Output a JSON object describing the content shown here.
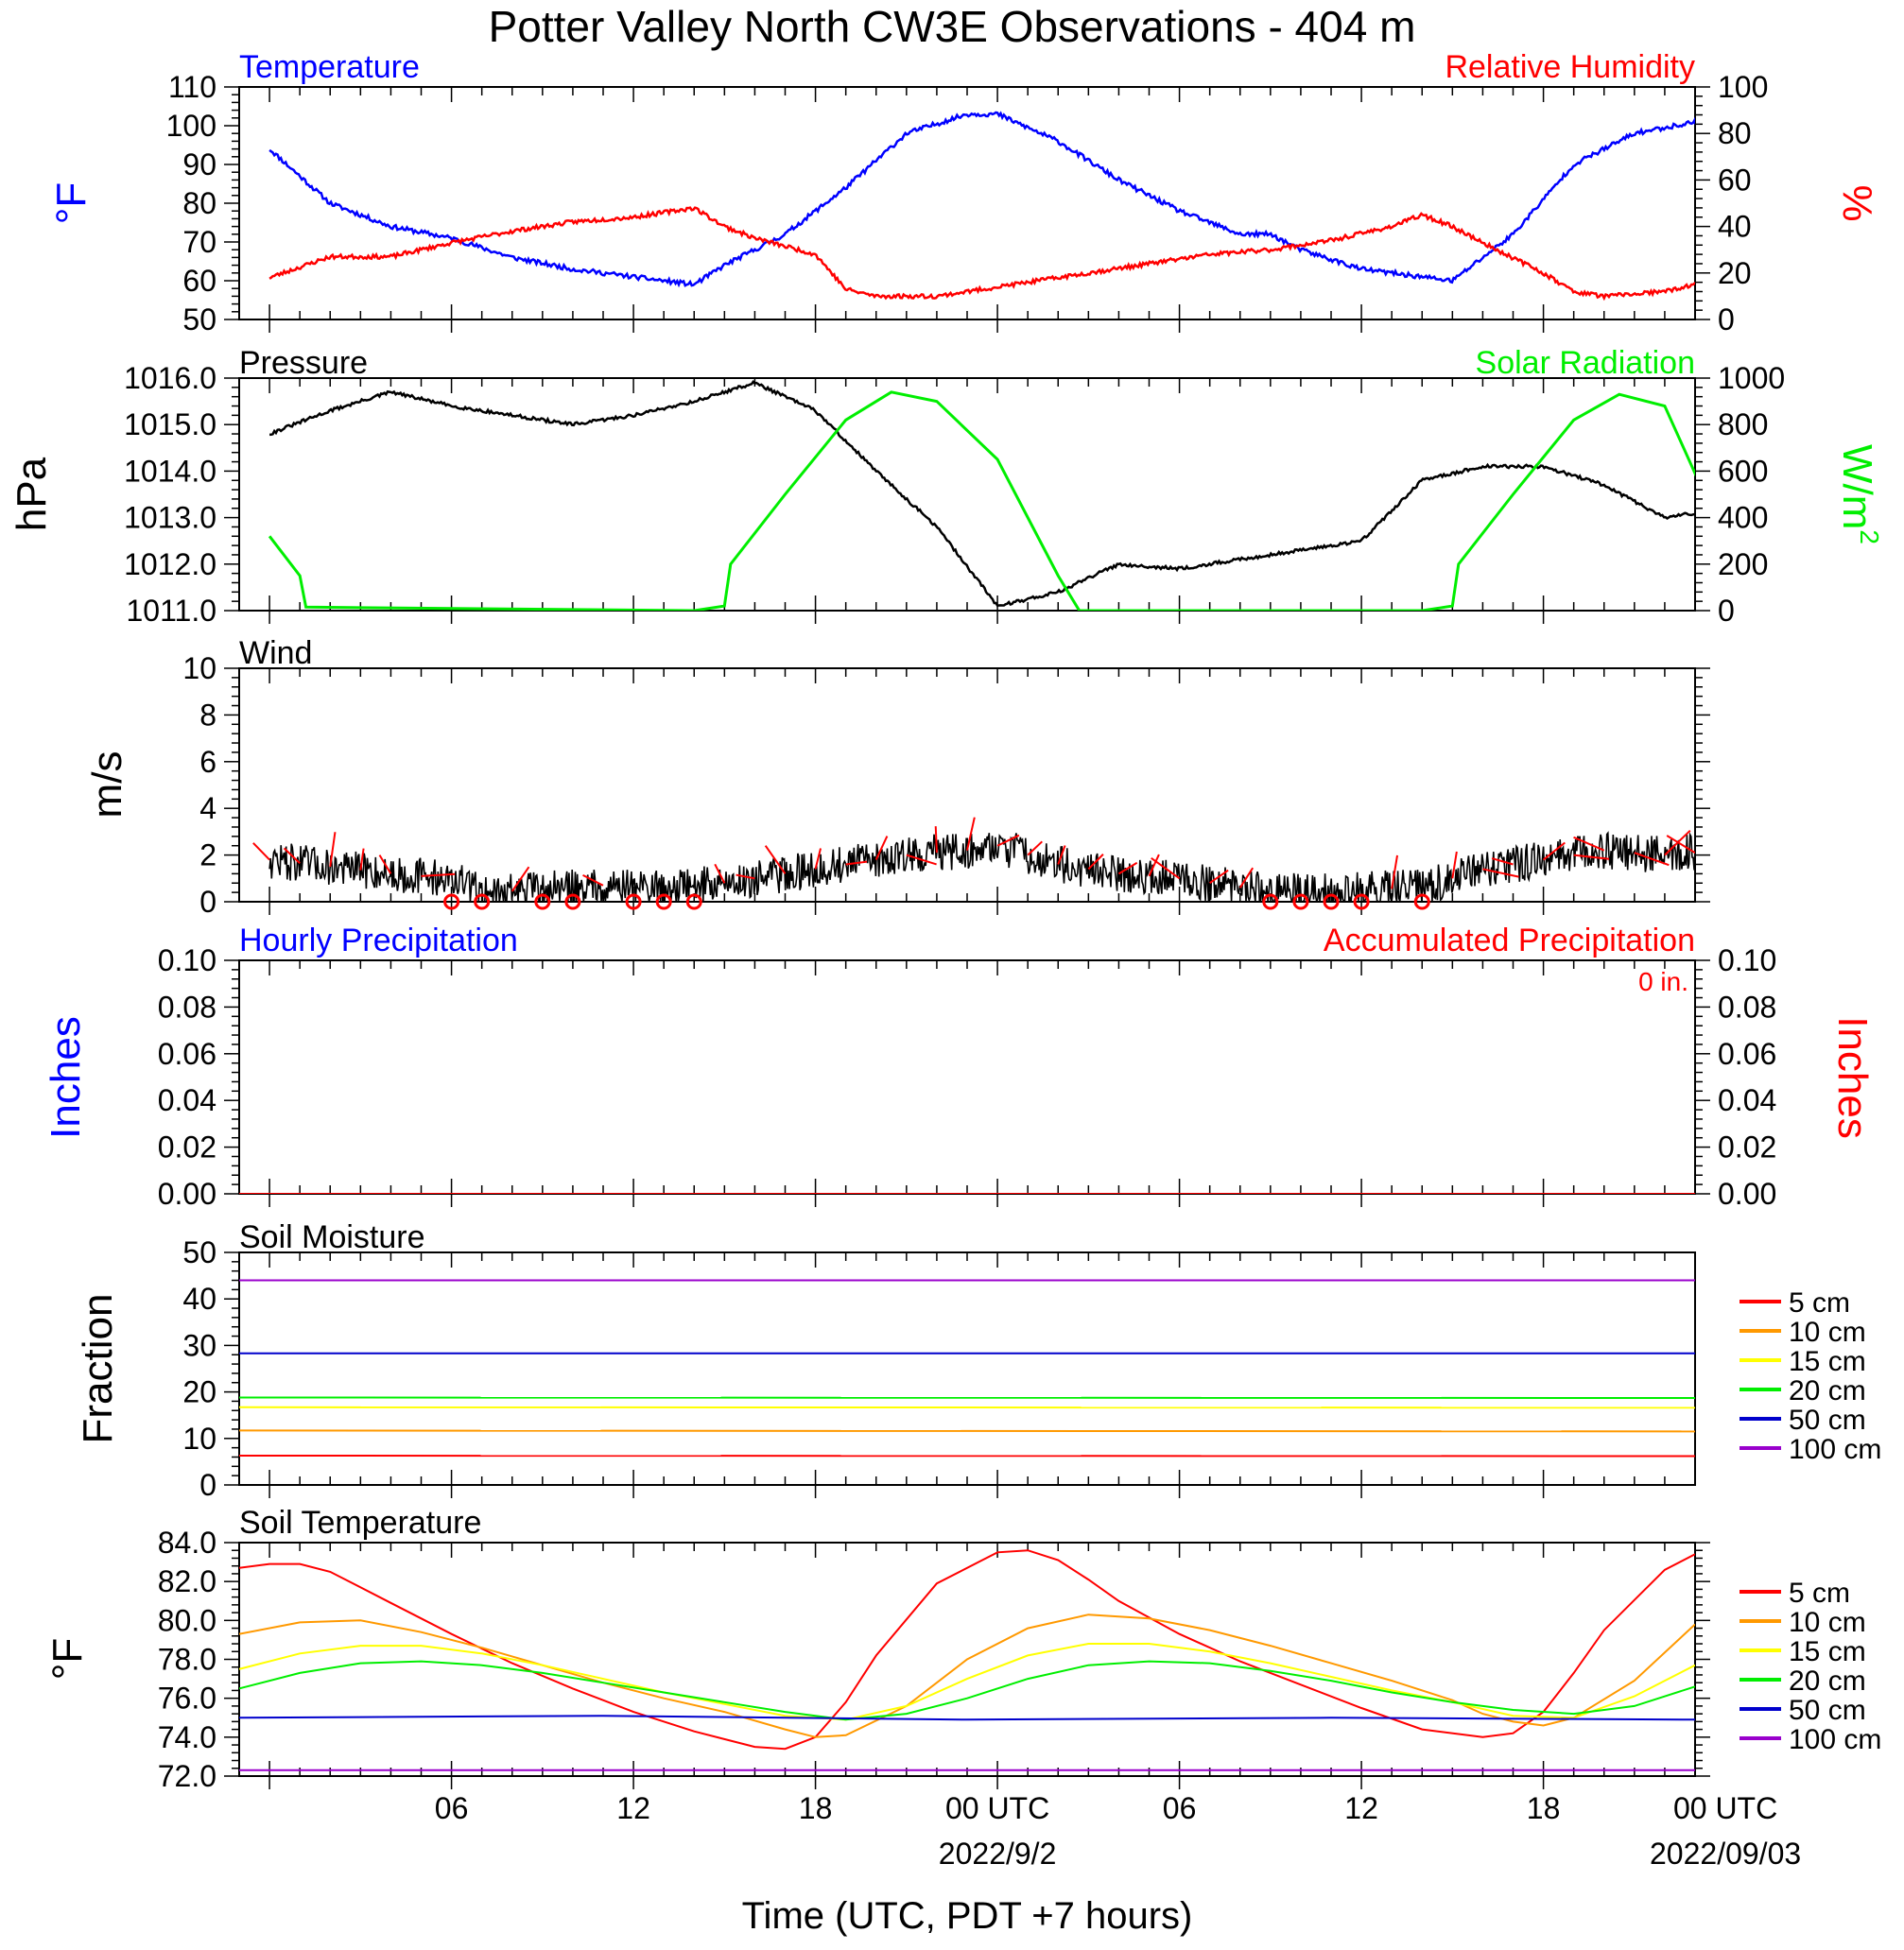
{
  "title": "Potter Valley North CW3E Observations - 404 m",
  "x_axis": {
    "label": "Time (UTC, PDT +7 hours)",
    "range_hours": [
      -1,
      47
    ],
    "tick_labels": [
      {
        "hour": 6,
        "text": "06"
      },
      {
        "hour": 12,
        "text": "12"
      },
      {
        "hour": 18,
        "text": "18"
      },
      {
        "hour": 24,
        "text": "00 UTC"
      },
      {
        "hour": 30,
        "text": "06"
      },
      {
        "hour": 36,
        "text": "12"
      },
      {
        "hour": 42,
        "text": "18"
      },
      {
        "hour": 48,
        "text": "00 UTC"
      }
    ],
    "date_labels": [
      {
        "hour": 24,
        "text": "2022/9/2"
      },
      {
        "hour": 48,
        "text": "2022/09/03"
      }
    ]
  },
  "chart_data": [
    {
      "type": "line",
      "panel": "temperature_humidity",
      "left_title": "Temperature",
      "right_title": "Relative Humidity",
      "left_unit": "°F",
      "right_unit": "%",
      "ylim_left": [
        50,
        110
      ],
      "ylim_right": [
        0,
        100
      ],
      "yticks_left": [
        "50",
        "60",
        "70",
        "80",
        "90",
        "100",
        "110"
      ],
      "yticks_right": [
        "0",
        "20",
        "40",
        "60",
        "80",
        "100"
      ],
      "colors": {
        "left": "#0000ff",
        "right": "#ff0000"
      },
      "series": [
        {
          "name": "Temperature",
          "axis": "left",
          "color": "#0000ff",
          "x": [
            0,
            2,
            4,
            6,
            8,
            10,
            12,
            14,
            15,
            17,
            19,
            21,
            23,
            24,
            26,
            28,
            30,
            32,
            33,
            34,
            36,
            38,
            39,
            41,
            43,
            45,
            47,
            48
          ],
          "y": [
            94,
            80,
            74,
            71,
            66,
            63,
            61,
            59,
            64,
            72,
            84,
            98,
            103,
            103,
            96,
            86,
            78,
            72,
            72,
            68,
            63,
            61,
            60,
            72,
            90,
            98,
            101,
            92
          ]
        },
        {
          "name": "Relative Humidity",
          "axis": "right",
          "color": "#ff0000",
          "x": [
            0,
            2,
            4,
            6,
            8,
            10,
            12,
            14,
            15,
            16,
            18,
            19,
            20,
            22,
            23,
            25,
            27,
            29,
            31,
            33,
            35,
            37,
            38,
            39,
            40,
            42,
            43,
            44,
            46,
            48
          ],
          "y": [
            18,
            27,
            27,
            33,
            38,
            42,
            44,
            48,
            40,
            35,
            28,
            13,
            10,
            10,
            12,
            16,
            20,
            24,
            28,
            30,
            34,
            40,
            45,
            40,
            33,
            20,
            12,
            10,
            12,
            18
          ]
        }
      ]
    },
    {
      "type": "line",
      "panel": "pressure_solar",
      "left_title": "Pressure",
      "right_title": "Solar Radiation",
      "left_unit": "hPa",
      "right_unit": "W/m",
      "right_unit_sup": "2",
      "ylim_left": [
        1011,
        1016
      ],
      "ylim_right": [
        0,
        1000
      ],
      "yticks_left": [
        "1011.0",
        "1012.0",
        "1013.0",
        "1014.0",
        "1015.0",
        "1016.0"
      ],
      "yticks_right": [
        "0",
        "200",
        "400",
        "600",
        "800",
        "1000"
      ],
      "series": [
        {
          "name": "Pressure",
          "axis": "left",
          "color": "#000000",
          "x": [
            0,
            2,
            4,
            6,
            8,
            10,
            12,
            14,
            16,
            18,
            20,
            22,
            24,
            26,
            28,
            30,
            32,
            34,
            36,
            38,
            40,
            42,
            44,
            46,
            48
          ],
          "y": [
            1014.8,
            1015.3,
            1015.7,
            1015.4,
            1015.2,
            1015.0,
            1015.2,
            1015.5,
            1015.9,
            1015.3,
            1014.0,
            1012.8,
            1011.1,
            1011.4,
            1012.0,
            1011.9,
            1012.1,
            1012.3,
            1012.5,
            1013.8,
            1014.1,
            1014.1,
            1013.7,
            1013.0,
            1013.2
          ]
        },
        {
          "name": "Solar Radiation",
          "axis": "right",
          "color": "#00ee00",
          "x": [
            0,
            1,
            1.2,
            14,
            15,
            15.2,
            17,
            19,
            20.5,
            22,
            24,
            26,
            26.7,
            38,
            39,
            39.2,
            41,
            43,
            44.5,
            46,
            48
          ],
          "y": [
            320,
            150,
            15,
            0,
            20,
            200,
            500,
            820,
            940,
            900,
            650,
            150,
            0,
            0,
            20,
            200,
            500,
            820,
            930,
            880,
            300
          ]
        }
      ]
    },
    {
      "type": "line",
      "panel": "wind",
      "left_title": "Wind",
      "left_unit": "m/s",
      "ylim": [
        0,
        10
      ],
      "yticks": [
        "0",
        "2",
        "4",
        "6",
        "8",
        "10"
      ],
      "series": [
        {
          "name": "Wind",
          "color": "#000000",
          "x": [
            0,
            2,
            4,
            6,
            7,
            9,
            11,
            13,
            15,
            17,
            19,
            21,
            23,
            24,
            26,
            28,
            30,
            32,
            34,
            36,
            38,
            40,
            42,
            44,
            46,
            48
          ],
          "y": [
            1.8,
            1.5,
            1.2,
            1.0,
            0.4,
            0.5,
            0.7,
            0.6,
            0.8,
            1.2,
            1.6,
            2.0,
            2.2,
            2.4,
            1.6,
            1.2,
            1.0,
            0.6,
            0.4,
            0.5,
            0.6,
            1.4,
            1.8,
            2.2,
            2.0,
            2.2
          ]
        }
      ],
      "calm_markers_hours": [
        6,
        7,
        9,
        10,
        12,
        13,
        14,
        33,
        34,
        35,
        36,
        38
      ],
      "barb_color": "#ff0000"
    },
    {
      "type": "line",
      "panel": "precipitation",
      "left_title": "Hourly Precipitation",
      "right_title": "Accumulated Precipitation",
      "total_label": "0 in.",
      "left_unit": "Inches",
      "right_unit": "Inches",
      "ylim": [
        0,
        0.1
      ],
      "yticks": [
        "0.00",
        "0.02",
        "0.04",
        "0.06",
        "0.08",
        "0.10"
      ],
      "series": [
        {
          "name": "Hourly Precipitation",
          "color": "#0000ff",
          "x": [
            -1,
            47
          ],
          "y": [
            0,
            0
          ]
        },
        {
          "name": "Accumulated Precipitation",
          "color": "#ff0000",
          "x": [
            -1,
            47
          ],
          "y": [
            0,
            0
          ]
        }
      ]
    },
    {
      "type": "line",
      "panel": "soil_moisture",
      "left_title": "Soil Moisture",
      "left_unit": "Fraction",
      "ylim": [
        0,
        50
      ],
      "yticks": [
        "0",
        "10",
        "20",
        "30",
        "40",
        "50"
      ],
      "series": [
        {
          "name": "5 cm",
          "color": "#ff0000",
          "x": [
            -1,
            47
          ],
          "y": [
            6.3,
            6.2
          ]
        },
        {
          "name": "10 cm",
          "color": "#ff9900",
          "x": [
            -1,
            47
          ],
          "y": [
            11.7,
            11.5
          ]
        },
        {
          "name": "15 cm",
          "color": "#ffff00",
          "x": [
            -1,
            47
          ],
          "y": [
            16.7,
            16.6
          ]
        },
        {
          "name": "20 cm",
          "color": "#00ee00",
          "x": [
            -1,
            47
          ],
          "y": [
            18.8,
            18.7
          ]
        },
        {
          "name": "50 cm",
          "color": "#0000cc",
          "x": [
            -1,
            47
          ],
          "y": [
            28.3,
            28.3
          ]
        },
        {
          "name": "100 cm",
          "color": "#9900cc",
          "x": [
            -1,
            47
          ],
          "y": [
            44.0,
            44.0
          ]
        }
      ]
    },
    {
      "type": "line",
      "panel": "soil_temperature",
      "left_title": "Soil Temperature",
      "left_unit": "°F",
      "ylim": [
        72,
        84
      ],
      "yticks": [
        "72.0",
        "74.0",
        "76.0",
        "78.0",
        "80.0",
        "82.0",
        "84.0"
      ],
      "series": [
        {
          "name": "5 cm",
          "color": "#ff0000",
          "x": [
            -1,
            0,
            1,
            2,
            4,
            6,
            8,
            10,
            12,
            14,
            16,
            17,
            18,
            19,
            20,
            22,
            24,
            25,
            26,
            27,
            28,
            30,
            32,
            34,
            36,
            38,
            40,
            41,
            42,
            43,
            44,
            46,
            47
          ],
          "y": [
            82.7,
            82.9,
            82.9,
            82.5,
            80.9,
            79.3,
            77.8,
            76.5,
            75.3,
            74.3,
            73.5,
            73.4,
            74.0,
            75.8,
            78.2,
            81.9,
            83.5,
            83.6,
            83.1,
            82.1,
            81.0,
            79.3,
            77.9,
            76.7,
            75.5,
            74.4,
            74.0,
            74.2,
            75.3,
            77.3,
            79.5,
            82.6,
            83.4
          ]
        },
        {
          "name": "10 cm",
          "color": "#ff9900",
          "x": [
            -1,
            1,
            3,
            5,
            7,
            9,
            11,
            13,
            15,
            17,
            18,
            19,
            21,
            23,
            25,
            27,
            29,
            31,
            33,
            35,
            37,
            39,
            40,
            41,
            42,
            43,
            45,
            47
          ],
          "y": [
            79.3,
            79.9,
            80.0,
            79.4,
            78.6,
            77.7,
            76.8,
            76.0,
            75.3,
            74.4,
            74.0,
            74.1,
            75.6,
            78.0,
            79.6,
            80.3,
            80.1,
            79.5,
            78.7,
            77.8,
            76.9,
            75.9,
            75.2,
            74.8,
            74.6,
            75.0,
            76.9,
            79.8
          ]
        },
        {
          "name": "15 cm",
          "color": "#ffff00",
          "x": [
            -1,
            1,
            3,
            5,
            7,
            9,
            11,
            13,
            15,
            17,
            19,
            21,
            23,
            25,
            27,
            29,
            31,
            33,
            35,
            37,
            39,
            41,
            43,
            45,
            47
          ],
          "y": [
            77.5,
            78.3,
            78.7,
            78.7,
            78.3,
            77.7,
            77.0,
            76.3,
            75.7,
            75.1,
            74.9,
            75.6,
            77.0,
            78.2,
            78.8,
            78.8,
            78.4,
            77.8,
            77.1,
            76.4,
            75.8,
            75.1,
            75.0,
            76.1,
            77.7
          ]
        },
        {
          "name": "20 cm",
          "color": "#00ee00",
          "x": [
            -1,
            1,
            3,
            5,
            7,
            9,
            11,
            13,
            15,
            17,
            19,
            21,
            23,
            25,
            27,
            29,
            31,
            33,
            35,
            37,
            39,
            41,
            43,
            45,
            47
          ],
          "y": [
            76.5,
            77.3,
            77.8,
            77.9,
            77.7,
            77.3,
            76.8,
            76.3,
            75.8,
            75.3,
            74.9,
            75.2,
            76.0,
            77.0,
            77.7,
            77.9,
            77.8,
            77.4,
            76.9,
            76.3,
            75.8,
            75.4,
            75.2,
            75.6,
            76.6
          ]
        },
        {
          "name": "50 cm",
          "color": "#0000cc",
          "x": [
            -1,
            11,
            23,
            35,
            47
          ],
          "y": [
            75.0,
            75.1,
            74.9,
            75.0,
            74.9
          ]
        },
        {
          "name": "100 cm",
          "color": "#9900cc",
          "x": [
            -1,
            47
          ],
          "y": [
            72.3,
            72.3
          ]
        }
      ]
    }
  ]
}
